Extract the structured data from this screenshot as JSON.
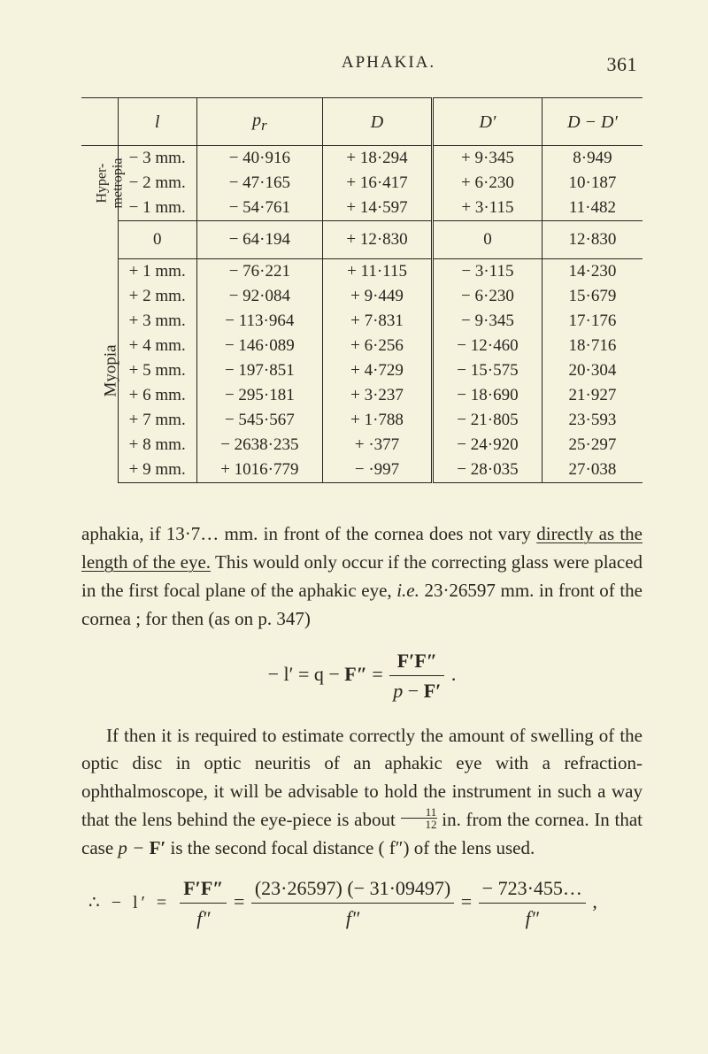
{
  "header": {
    "title": "APHAKIA.",
    "page_number": "361"
  },
  "table": {
    "columns": [
      "l",
      "p",
      "D",
      "D′",
      "D − D′"
    ],
    "pr_subscript": "r",
    "group1": {
      "label": "Hyper-\nmetropia",
      "rows": [
        {
          "l": "− 3 mm.",
          "pr": "− 40·916",
          "D": "+ 18·294",
          "Dp": "+ 9·345",
          "Diff": "8·949"
        },
        {
          "l": "− 2 mm.",
          "pr": "− 47·165",
          "D": "+ 16·417",
          "Dp": "+ 6·230",
          "Diff": "10·187"
        },
        {
          "l": "− 1 mm.",
          "pr": "− 54·761",
          "D": "+ 14·597",
          "Dp": "+ 3·115",
          "Diff": "11·482"
        }
      ]
    },
    "zero_row": {
      "l": "0",
      "pr": "− 64·194",
      "D": "+ 12·830",
      "Dp": "0",
      "Diff": "12·830"
    },
    "group2": {
      "label": "Myopia",
      "rows": [
        {
          "l": "+ 1 mm.",
          "pr": "−   76·221",
          "D": "+ 11·115",
          "Dp": "−  3·115",
          "Diff": "14·230"
        },
        {
          "l": "+ 2 mm.",
          "pr": "−   92·084",
          "D": "+  9·449",
          "Dp": "−  6·230",
          "Diff": "15·679"
        },
        {
          "l": "+ 3 mm.",
          "pr": "−  113·964",
          "D": "+  7·831",
          "Dp": "−  9·345",
          "Diff": "17·176"
        },
        {
          "l": "+ 4 mm.",
          "pr": "−  146·089",
          "D": "+  6·256",
          "Dp": "− 12·460",
          "Diff": "18·716"
        },
        {
          "l": "+ 5 mm.",
          "pr": "−  197·851",
          "D": "+  4·729",
          "Dp": "− 15·575",
          "Diff": "20·304"
        },
        {
          "l": "+ 6 mm.",
          "pr": "−  295·181",
          "D": "+  3·237",
          "Dp": "− 18·690",
          "Diff": "21·927"
        },
        {
          "l": "+ 7 mm.",
          "pr": "−  545·567",
          "D": "+  1·788",
          "Dp": "− 21·805",
          "Diff": "23·593"
        },
        {
          "l": "+ 8 mm.",
          "pr": "− 2638·235",
          "D": "+   ·377",
          "Dp": "− 24·920",
          "Diff": "25·297"
        },
        {
          "l": "+ 9 mm.",
          "pr": "+ 1016·779",
          "D": "−   ·997",
          "Dp": "− 28·035",
          "Diff": "27·038"
        }
      ]
    }
  },
  "text": {
    "p1a": "aphakia, if 13·7… mm. in front of the cornea does not vary ",
    "p1b": "directly as the length of the eye.",
    "p1c": "  This would only occur if the correcting glass were placed in the first focal plane of the aphakic eye, ",
    "p1d": "i.e.",
    "p1e": " 23·26597 mm. in front of the cornea ; for then (as on p. 347)",
    "formula1": {
      "lhs": "− l′ = q − ",
      "F2": "F″",
      "eq": " = ",
      "num": "F′F″",
      "den": "p − F′",
      "tail": " ."
    },
    "p2": "If then it is required to estimate correctly the amount of swelling of the optic disc in optic neuritis of an aphakic eye with a refraction-ophthalmoscope, it will be advisable to hold the instrument in such a way that the lens behind the eye-piece is about ",
    "frac_inline_num": "11",
    "frac_inline_den": "12",
    "p2b": " in. from the cornea.   In that case ",
    "p2c": "p − ",
    "p2d": "F′",
    "p2e": " is the second focal distance ( f″) of the lens used.",
    "formula2": {
      "lead": "∴   − l′ = ",
      "num1": "F′F″",
      "den1": "f″",
      "eq1": " = ",
      "num2": "(23·26597) (− 31·09497)",
      "den2": "f″",
      "eq2": " = ",
      "num3": "− 723·455…",
      "den3": "f″",
      "tail": " ,"
    }
  }
}
